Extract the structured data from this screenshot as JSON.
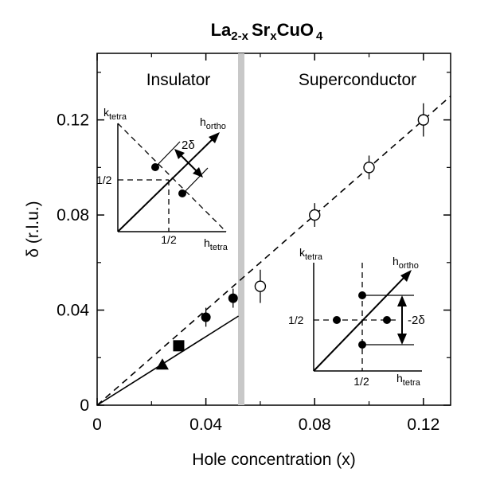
{
  "chart_data": {
    "type": "scatter",
    "title": {
      "base": "La",
      "sub1": "2-x",
      "mid": "Sr",
      "sub2": "x",
      "tail": "CuO",
      "sub3": "4"
    },
    "xlabel": "Hole concentration (x)",
    "ylabel": "δ (r.l.u.)",
    "xlim": [
      0,
      0.13
    ],
    "ylim": [
      0,
      0.148
    ],
    "xticks": [
      {
        "value": 0,
        "label": "0"
      },
      {
        "value": 0.04,
        "label": "0.04"
      },
      {
        "value": 0.08,
        "label": "0.08"
      },
      {
        "value": 0.12,
        "label": "0.12"
      }
    ],
    "yticks": [
      {
        "value": 0,
        "label": "0"
      },
      {
        "value": 0.04,
        "label": "0.04"
      },
      {
        "value": 0.08,
        "label": "0.08"
      },
      {
        "value": 0.12,
        "label": "0.12"
      }
    ],
    "minor_xticks": [
      0.02,
      0.06,
      0.1
    ],
    "minor_yticks": [
      0.02,
      0.06,
      0.1,
      0.14
    ],
    "boundary_x": 0.053,
    "regions": [
      {
        "label": "Insulator",
        "side": "left"
      },
      {
        "label": "Superconductor",
        "side": "right"
      }
    ],
    "series": [
      {
        "marker": "circle-filled",
        "points": [
          {
            "x": 0.04,
            "y": 0.037,
            "err": 0.004
          },
          {
            "x": 0.05,
            "y": 0.045,
            "err": 0.004
          }
        ]
      },
      {
        "marker": "square-filled",
        "points": [
          {
            "x": 0.03,
            "y": 0.025,
            "err": 0
          }
        ]
      },
      {
        "marker": "triangle-filled",
        "points": [
          {
            "x": 0.024,
            "y": 0.017,
            "err": 0
          }
        ]
      },
      {
        "marker": "circle-open",
        "points": [
          {
            "x": 0.06,
            "y": 0.05,
            "err": 0.007
          },
          {
            "x": 0.08,
            "y": 0.08,
            "err": 0.005
          },
          {
            "x": 0.1,
            "y": 0.1,
            "err": 0.005
          },
          {
            "x": 0.12,
            "y": 0.12,
            "err": 0.007
          }
        ]
      }
    ],
    "lines": [
      {
        "style": "dashed",
        "from": [
          0,
          0
        ],
        "to": [
          0.13,
          0.13
        ]
      },
      {
        "style": "solid",
        "from": [
          0,
          0
        ],
        "to": [
          0.052,
          0.0375
        ]
      }
    ],
    "insets": [
      {
        "position": "upper-left",
        "k_label": "k",
        "k_sub": "tetra",
        "h_label": "h",
        "h_sub": "tetra",
        "ortho_label": "h",
        "ortho_sub": "ortho",
        "half_x": "1/2",
        "half_y": "1/2",
        "delta_label": "2δ"
      },
      {
        "position": "lower-right",
        "k_label": "k",
        "k_sub": "tetra",
        "h_label": "h",
        "h_sub": "tetra",
        "ortho_label": "h",
        "ortho_sub": "ortho",
        "half_x": "1/2",
        "half_y": "1/2",
        "delta_label": "-2δ"
      }
    ]
  }
}
